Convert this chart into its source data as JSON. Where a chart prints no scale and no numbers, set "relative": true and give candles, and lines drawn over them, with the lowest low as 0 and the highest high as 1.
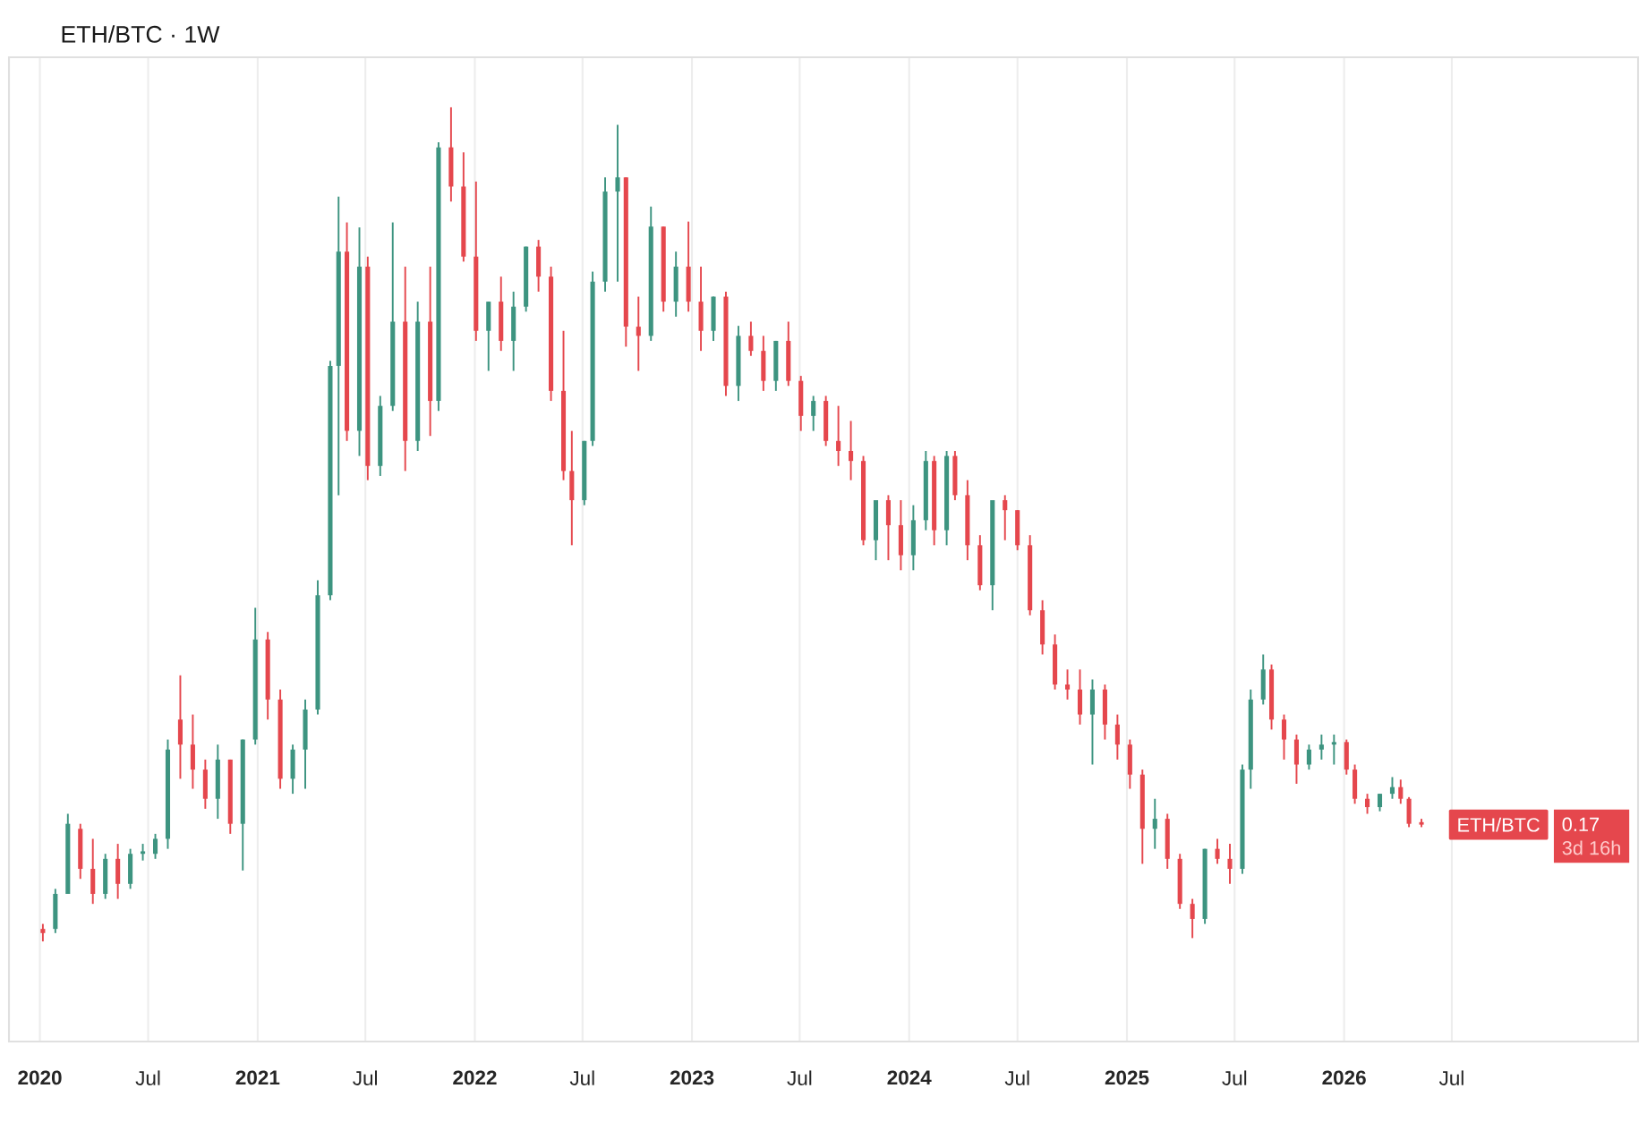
{
  "chart_data": {
    "type": "candlestick",
    "title": "ETH/BTC · 1W",
    "relative": true,
    "grid": "x",
    "xlim": [
      "2019-11-10",
      "2027-05-10"
    ],
    "xticks": [
      {
        "value": "2020-01-01",
        "label": "2020"
      },
      {
        "value": "2020-07-01",
        "label": "Jul"
      },
      {
        "value": "2021-01-01",
        "label": "2021"
      },
      {
        "value": "2021-07-01",
        "label": "Jul"
      },
      {
        "value": "2022-01-01",
        "label": "2022"
      },
      {
        "value": "2022-07-01",
        "label": "Jul"
      },
      {
        "value": "2023-01-01",
        "label": "2023"
      },
      {
        "value": "2023-07-01",
        "label": "Jul"
      },
      {
        "value": "2024-01-01",
        "label": "2024"
      },
      {
        "value": "2024-07-01",
        "label": "Jul"
      },
      {
        "value": "2025-01-01",
        "label": "2025"
      },
      {
        "value": "2025-07-01",
        "label": "Jul"
      },
      {
        "value": "2026-01-01",
        "label": "2026"
      },
      {
        "value": "2026-07-01",
        "label": "Jul"
      }
    ],
    "annotations": [
      "ETH/BTC",
      "0.17",
      "3d 16h"
    ],
    "x": [
      "2020-01-06",
      "2020-01-27",
      "2020-02-17",
      "2020-03-09",
      "2020-03-30",
      "2020-04-20",
      "2020-05-11",
      "2020-06-01",
      "2020-06-22",
      "2020-07-13",
      "2020-08-03",
      "2020-08-24",
      "2020-09-14",
      "2020-10-05",
      "2020-10-26",
      "2020-11-16",
      "2020-12-07",
      "2020-12-28",
      "2021-01-18",
      "2021-02-08",
      "2021-03-01",
      "2021-03-22",
      "2021-04-12",
      "2021-05-03",
      "2021-05-17",
      "2021-05-31",
      "2021-06-21",
      "2021-07-05",
      "2021-07-26",
      "2021-08-16",
      "2021-09-06",
      "2021-09-27",
      "2021-10-18",
      "2021-11-01",
      "2021-11-22",
      "2021-12-13",
      "2022-01-03",
      "2022-01-24",
      "2022-02-14",
      "2022-03-07",
      "2022-03-28",
      "2022-04-18",
      "2022-05-09",
      "2022-05-30",
      "2022-06-13",
      "2022-07-04",
      "2022-07-18",
      "2022-08-08",
      "2022-08-29",
      "2022-09-12",
      "2022-10-03",
      "2022-10-24",
      "2022-11-14",
      "2022-12-05",
      "2022-12-26",
      "2023-01-16",
      "2023-02-06",
      "2023-02-27",
      "2023-03-20",
      "2023-04-10",
      "2023-05-01",
      "2023-05-22",
      "2023-06-12",
      "2023-07-03",
      "2023-07-24",
      "2023-08-14",
      "2023-09-04",
      "2023-09-25",
      "2023-10-16",
      "2023-11-06",
      "2023-11-27",
      "2023-12-18",
      "2024-01-08",
      "2024-01-29",
      "2024-02-12",
      "2024-03-04",
      "2024-03-18",
      "2024-04-08",
      "2024-04-29",
      "2024-05-20",
      "2024-06-10",
      "2024-07-01",
      "2024-07-22",
      "2024-08-12",
      "2024-09-02",
      "2024-09-23",
      "2024-10-14",
      "2024-11-04",
      "2024-11-25",
      "2024-12-16",
      "2025-01-06",
      "2025-01-27",
      "2025-02-17",
      "2025-03-10",
      "2025-03-31",
      "2025-04-21",
      "2025-05-12",
      "2025-06-02",
      "2025-06-23",
      "2025-07-14",
      "2025-07-28",
      "2025-08-18",
      "2025-09-01",
      "2025-09-22",
      "2025-10-13",
      "2025-11-03",
      "2025-11-24",
      "2025-12-15",
      "2026-01-05",
      "2026-01-19",
      "2026-02-09",
      "2026-03-02",
      "2026-03-23",
      "2026-04-06",
      "2026-04-20",
      "2026-05-11"
    ],
    "ohlc": [
      [
        0.015,
        0.021,
        0,
        0.01
      ],
      [
        0.015,
        0.063,
        0.01,
        0.057
      ],
      [
        0.057,
        0.153,
        0.057,
        0.141
      ],
      [
        0.135,
        0.141,
        0.075,
        0.087
      ],
      [
        0.087,
        0.123,
        0.045,
        0.057
      ],
      [
        0.057,
        0.105,
        0.051,
        0.099
      ],
      [
        0.099,
        0.117,
        0.051,
        0.069
      ],
      [
        0.069,
        0.111,
        0.063,
        0.105
      ],
      [
        0.105,
        0.117,
        0.097,
        0.107
      ],
      [
        0.105,
        0.129,
        0.099,
        0.123
      ],
      [
        0.123,
        0.242,
        0.111,
        0.23
      ],
      [
        0.266,
        0.319,
        0.195,
        0.236
      ],
      [
        0.236,
        0.272,
        0.183,
        0.206
      ],
      [
        0.206,
        0.218,
        0.159,
        0.171
      ],
      [
        0.171,
        0.236,
        0.147,
        0.218
      ],
      [
        0.218,
        0.218,
        0.129,
        0.141
      ],
      [
        0.141,
        0.242,
        0.085,
        0.242
      ],
      [
        0.242,
        0.4,
        0.236,
        0.362
      ],
      [
        0.362,
        0.371,
        0.266,
        0.29
      ],
      [
        0.29,
        0.302,
        0.183,
        0.195
      ],
      [
        0.195,
        0.236,
        0.177,
        0.23
      ],
      [
        0.23,
        0.29,
        0.183,
        0.278
      ],
      [
        0.278,
        0.433,
        0.272,
        0.415
      ],
      [
        0.415,
        0.696,
        0.409,
        0.69
      ],
      [
        0.69,
        0.893,
        0.535,
        0.827
      ],
      [
        0.827,
        0.862,
        0.6,
        0.612
      ],
      [
        0.612,
        0.856,
        0.582,
        0.809
      ],
      [
        0.809,
        0.821,
        0.553,
        0.57
      ],
      [
        0.57,
        0.654,
        0.558,
        0.642
      ],
      [
        0.642,
        0.862,
        0.636,
        0.743
      ],
      [
        0.743,
        0.809,
        0.564,
        0.6
      ],
      [
        0.6,
        0.767,
        0.588,
        0.743
      ],
      [
        0.743,
        0.809,
        0.606,
        0.648
      ],
      [
        0.648,
        0.958,
        0.636,
        0.952
      ],
      [
        0.952,
        1,
        0.887,
        0.905
      ],
      [
        0.905,
        0.946,
        0.815,
        0.821
      ],
      [
        0.821,
        0.911,
        0.72,
        0.732
      ],
      [
        0.732,
        0.767,
        0.684,
        0.767
      ],
      [
        0.767,
        0.797,
        0.708,
        0.72
      ],
      [
        0.72,
        0.779,
        0.684,
        0.761
      ],
      [
        0.761,
        0.833,
        0.755,
        0.833
      ],
      [
        0.833,
        0.841,
        0.779,
        0.797
      ],
      [
        0.797,
        0.809,
        0.648,
        0.66
      ],
      [
        0.66,
        0.732,
        0.553,
        0.564
      ],
      [
        0.564,
        0.612,
        0.475,
        0.529
      ],
      [
        0.529,
        0.6,
        0.523,
        0.6
      ],
      [
        0.6,
        0.803,
        0.594,
        0.791
      ],
      [
        0.791,
        0.916,
        0.779,
        0.899
      ],
      [
        0.899,
        0.979,
        0.791,
        0.916
      ],
      [
        0.916,
        0.916,
        0.713,
        0.737
      ],
      [
        0.737,
        0.773,
        0.684,
        0.726
      ],
      [
        0.726,
        0.881,
        0.72,
        0.857
      ],
      [
        0.857,
        0.857,
        0.755,
        0.767
      ],
      [
        0.767,
        0.827,
        0.749,
        0.809
      ],
      [
        0.809,
        0.863,
        0.755,
        0.767
      ],
      [
        0.767,
        0.809,
        0.708,
        0.732
      ],
      [
        0.732,
        0.773,
        0.72,
        0.773
      ],
      [
        0.773,
        0.779,
        0.654,
        0.666
      ],
      [
        0.666,
        0.738,
        0.648,
        0.726
      ],
      [
        0.726,
        0.743,
        0.702,
        0.708
      ],
      [
        0.708,
        0.726,
        0.66,
        0.672
      ],
      [
        0.672,
        0.72,
        0.66,
        0.72
      ],
      [
        0.72,
        0.743,
        0.666,
        0.672
      ],
      [
        0.672,
        0.678,
        0.612,
        0.63
      ],
      [
        0.63,
        0.654,
        0.612,
        0.648
      ],
      [
        0.648,
        0.654,
        0.594,
        0.6
      ],
      [
        0.6,
        0.642,
        0.57,
        0.588
      ],
      [
        0.588,
        0.624,
        0.553,
        0.576
      ],
      [
        0.576,
        0.582,
        0.475,
        0.481
      ],
      [
        0.481,
        0.529,
        0.457,
        0.529
      ],
      [
        0.529,
        0.535,
        0.457,
        0.499
      ],
      [
        0.499,
        0.529,
        0.445,
        0.463
      ],
      [
        0.463,
        0.523,
        0.445,
        0.505
      ],
      [
        0.505,
        0.588,
        0.493,
        0.576
      ],
      [
        0.576,
        0.582,
        0.475,
        0.493
      ],
      [
        0.493,
        0.588,
        0.475,
        0.582
      ],
      [
        0.582,
        0.588,
        0.529,
        0.535
      ],
      [
        0.535,
        0.553,
        0.457,
        0.475
      ],
      [
        0.475,
        0.487,
        0.421,
        0.427
      ],
      [
        0.427,
        0.529,
        0.397,
        0.529
      ],
      [
        0.529,
        0.535,
        0.481,
        0.517
      ],
      [
        0.517,
        0.517,
        0.469,
        0.475
      ],
      [
        0.475,
        0.487,
        0.391,
        0.397
      ],
      [
        0.397,
        0.409,
        0.344,
        0.356
      ],
      [
        0.356,
        0.368,
        0.302,
        0.308
      ],
      [
        0.308,
        0.326,
        0.29,
        0.302
      ],
      [
        0.302,
        0.326,
        0.26,
        0.272
      ],
      [
        0.272,
        0.314,
        0.212,
        0.302
      ],
      [
        0.302,
        0.308,
        0.242,
        0.26
      ],
      [
        0.26,
        0.272,
        0.218,
        0.236
      ],
      [
        0.236,
        0.242,
        0.183,
        0.2
      ],
      [
        0.2,
        0.206,
        0.093,
        0.135
      ],
      [
        0.135,
        0.171,
        0.111,
        0.147
      ],
      [
        0.147,
        0.153,
        0.087,
        0.099
      ],
      [
        0.099,
        0.105,
        0.039,
        0.045
      ],
      [
        0.045,
        0.051,
        0.004,
        0.027
      ],
      [
        0.027,
        0.111,
        0.021,
        0.111
      ],
      [
        0.111,
        0.123,
        0.093,
        0.099
      ],
      [
        0.099,
        0.117,
        0.069,
        0.087
      ],
      [
        0.087,
        0.212,
        0.081,
        0.206
      ],
      [
        0.206,
        0.302,
        0.183,
        0.29
      ],
      [
        0.29,
        0.344,
        0.284,
        0.326
      ],
      [
        0.326,
        0.332,
        0.254,
        0.266
      ],
      [
        0.266,
        0.272,
        0.218,
        0.242
      ],
      [
        0.242,
        0.248,
        0.189,
        0.212
      ],
      [
        0.212,
        0.236,
        0.206,
        0.23
      ],
      [
        0.23,
        0.248,
        0.218,
        0.236
      ],
      [
        0.236,
        0.248,
        0.212,
        0.239
      ],
      [
        0.239,
        0.242,
        0.2,
        0.206
      ],
      [
        0.206,
        0.212,
        0.165,
        0.171
      ],
      [
        0.171,
        0.177,
        0.153,
        0.161
      ],
      [
        0.161,
        0.177,
        0.156,
        0.177
      ],
      [
        0.177,
        0.197,
        0.171,
        0.185
      ],
      [
        0.185,
        0.194,
        0.165,
        0.171
      ],
      [
        0.171,
        0.173,
        0.137,
        0.141
      ],
      [
        0.141,
        0.147,
        0.137,
        0.14
      ]
    ],
    "colors": [
      "#e5474d",
      "#3d9480",
      "#3d9480",
      "#e5474d",
      "#e5474d",
      "#3d9480",
      "#e5474d",
      "#3d9480",
      "#3d9480",
      "#3d9480",
      "#3d9480",
      "#e5474d",
      "#e5474d",
      "#e5474d",
      "#3d9480",
      "#e5474d",
      "#3d9480",
      "#3d9480",
      "#e5474d",
      "#e5474d",
      "#3d9480",
      "#3d9480",
      "#3d9480",
      "#3d9480",
      "#3d9480",
      "#e5474d",
      "#3d9480",
      "#e5474d",
      "#3d9480",
      "#3d9480",
      "#e5474d",
      "#3d9480",
      "#e5474d",
      "#3d9480",
      "#e5474d",
      "#e5474d",
      "#e5474d",
      "#3d9480",
      "#e5474d",
      "#3d9480",
      "#3d9480",
      "#e5474d",
      "#e5474d",
      "#e5474d",
      "#e5474d",
      "#3d9480",
      "#3d9480",
      "#3d9480",
      "#3d9480",
      "#e5474d",
      "#e5474d",
      "#3d9480",
      "#e5474d",
      "#3d9480",
      "#e5474d",
      "#e5474d",
      "#3d9480",
      "#e5474d",
      "#3d9480",
      "#e5474d",
      "#e5474d",
      "#3d9480",
      "#e5474d",
      "#e5474d",
      "#3d9480",
      "#e5474d",
      "#e5474d",
      "#e5474d",
      "#e5474d",
      "#3d9480",
      "#e5474d",
      "#e5474d",
      "#3d9480",
      "#3d9480",
      "#e5474d",
      "#3d9480",
      "#e5474d",
      "#e5474d",
      "#e5474d",
      "#3d9480",
      "#e5474d",
      "#e5474d",
      "#e5474d",
      "#e5474d",
      "#e5474d",
      "#e5474d",
      "#e5474d",
      "#3d9480",
      "#e5474d",
      "#e5474d",
      "#e5474d",
      "#e5474d",
      "#3d9480",
      "#e5474d",
      "#e5474d",
      "#e5474d",
      "#3d9480",
      "#e5474d",
      "#e5474d",
      "#3d9480",
      "#3d9480",
      "#3d9480",
      "#e5474d",
      "#e5474d",
      "#e5474d",
      "#3d9480",
      "#3d9480",
      "#3d9480",
      "#e5474d",
      "#e5474d",
      "#e5474d",
      "#3d9480",
      "#3d9480",
      "#e5474d",
      "#e5474d",
      "#e5474d"
    ]
  }
}
